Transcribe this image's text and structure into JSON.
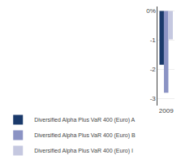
{
  "chart_data": {
    "type": "bar",
    "categories": [
      "2009"
    ],
    "series": [
      {
        "name": "Diversified Alpha Plus VaR 400 (Euro) A",
        "color": "#1a3a6b",
        "values": [
          -1.85
        ]
      },
      {
        "name": "Diversified Alpha Plus VaR 400 (Euro) B",
        "color": "#8b93c4",
        "values": [
          -2.81
        ]
      },
      {
        "name": "Diversified Alpha Plus VaR 400 (Euro) I",
        "color": "#c5c8e0",
        "values": [
          -0.98
        ]
      }
    ],
    "ylim": [
      -3.25,
      0.15
    ],
    "yticks": [
      {
        "value": 0,
        "label": "0%"
      },
      -1,
      -2,
      -3
    ],
    "grid": true,
    "legend": "bottom"
  }
}
